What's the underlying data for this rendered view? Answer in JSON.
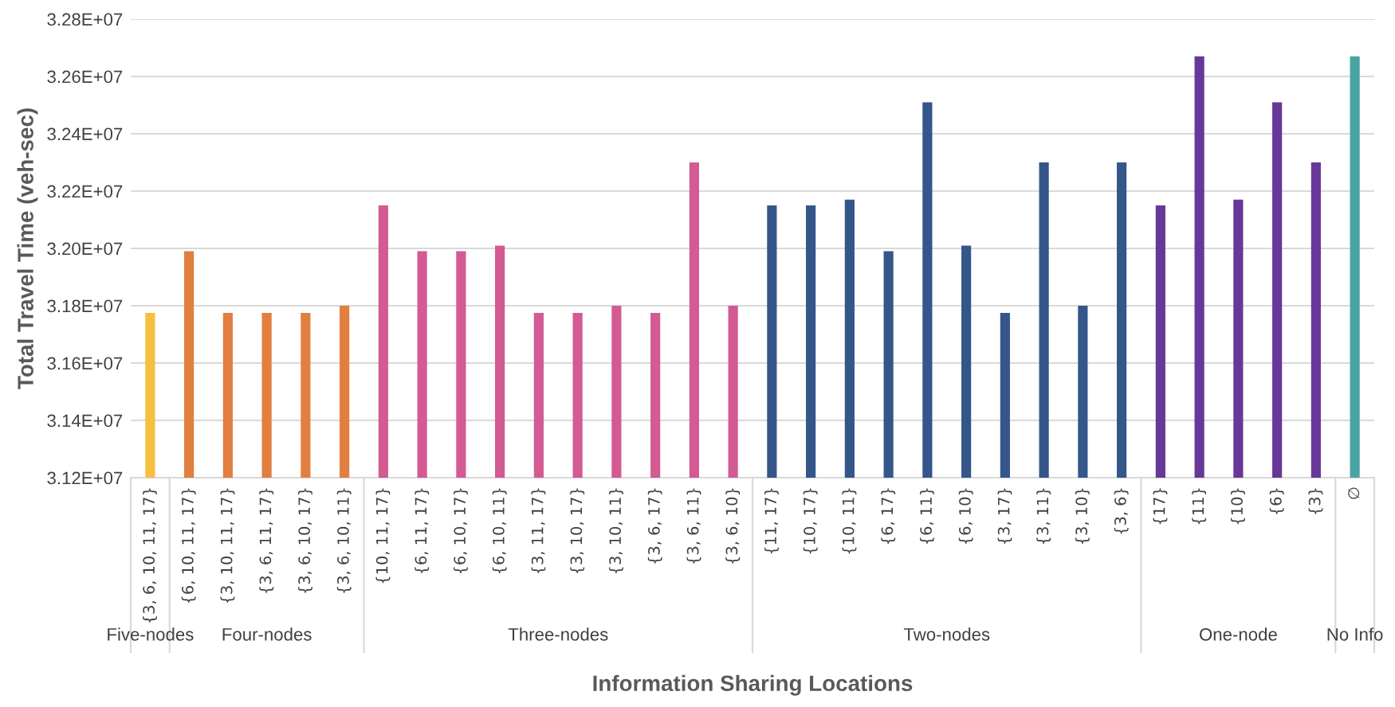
{
  "chart_data": {
    "type": "bar",
    "xlabel": "Information Sharing Locations",
    "ylabel": "Total Travel Time (veh-sec)",
    "categories": [
      "{3, 6, 10, 11, 17}",
      "{6, 10, 11, 17}",
      "{3, 10, 11, 17}",
      "{3, 6, 11, 17}",
      "{3, 6, 10, 17}",
      "{3, 6, 10, 11}",
      "{10, 11, 17}",
      "{6, 11, 17}",
      "{6, 10, 17}",
      "{6, 10, 11}",
      "{3, 11, 17}",
      "{3, 10, 17}",
      "{3, 10, 11}",
      "{3, 6, 17}",
      "{3, 6, 11}",
      "{3, 6, 10}",
      "{11, 17}",
      "{10, 17}",
      "{10, 11}",
      "{6, 17}",
      "{6, 11}",
      "{6, 10}",
      "{3, 17}",
      "{3, 11}",
      "{3, 10}",
      "{3, 6}",
      "{17}",
      "{11}",
      "{10}",
      "{6}",
      "{3}",
      "∅"
    ],
    "values": [
      31775000,
      31990000,
      31775000,
      31775000,
      31775000,
      31800000,
      32150000,
      31990000,
      31990000,
      32010000,
      31775000,
      31775000,
      31800000,
      31775000,
      32300000,
      31800000,
      32150000,
      32150000,
      32170000,
      31990000,
      32510000,
      32010000,
      31775000,
      32300000,
      31800000,
      32300000,
      32150000,
      32670000,
      32170000,
      32510000,
      32300000,
      32670000
    ],
    "colors": [
      "#f6bf3f",
      "#e07f40",
      "#e07f40",
      "#e07f40",
      "#e07f40",
      "#e07f40",
      "#d35a92",
      "#d35a92",
      "#d35a92",
      "#d35a92",
      "#d35a92",
      "#d35a92",
      "#d35a92",
      "#d35a92",
      "#d35a92",
      "#d35a92",
      "#34568b",
      "#34568b",
      "#34568b",
      "#34568b",
      "#34568b",
      "#34568b",
      "#34568b",
      "#34568b",
      "#34568b",
      "#34568b",
      "#68379a",
      "#68379a",
      "#68379a",
      "#68379a",
      "#68379a",
      "#4aa3a3"
    ],
    "annotations": [
      "Five-nodes",
      "Four-nodes",
      "Three-nodes",
      "Two-nodes",
      "One-node",
      "No Info"
    ],
    "ylim": [
      31200000,
      32800000
    ],
    "yticks": [
      {
        "value": 31200000,
        "label": "3.12E+07"
      },
      {
        "value": 31400000,
        "label": "3.14E+07"
      },
      {
        "value": 31600000,
        "label": "3.16E+07"
      },
      {
        "value": 31800000,
        "label": "3.18E+07"
      },
      {
        "value": 32000000,
        "label": "3.20E+07"
      },
      {
        "value": 32200000,
        "label": "3.22E+07"
      },
      {
        "value": 32400000,
        "label": "3.24E+07"
      },
      {
        "value": 32600000,
        "label": "3.26E+07"
      },
      {
        "value": 32800000,
        "label": "3.28E+07"
      }
    ],
    "grid": "y"
  }
}
